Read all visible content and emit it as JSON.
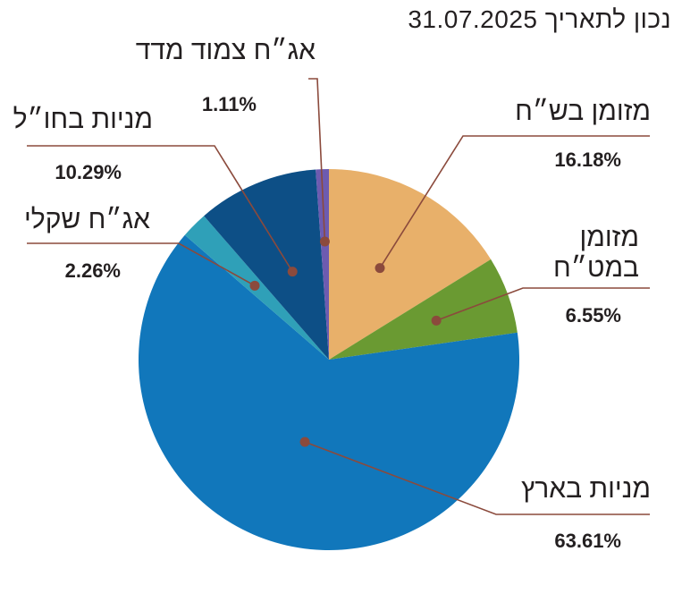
{
  "header": {
    "title": "נכון לתאריך 31.07.2025"
  },
  "chart_data": {
    "type": "pie",
    "title": "נכון לתאריך 31.07.2025",
    "slices": [
      {
        "label": "מזומן בש״ח",
        "value": 16.18,
        "value_label": "16.18%",
        "color": "#e8b06a"
      },
      {
        "label": "מזומן\nבמט״ח",
        "value": 6.55,
        "value_label": "6.55%",
        "color": "#6a9a32"
      },
      {
        "label": "מניות בארץ",
        "value": 63.61,
        "value_label": "63.61%",
        "color": "#1177bb"
      },
      {
        "label": "אג״ח שקלי",
        "value": 2.26,
        "value_label": "2.26%",
        "color": "#2fa0b8"
      },
      {
        "label": "מניות בחו״ל",
        "value": 10.29,
        "value_label": "10.29%",
        "color": "#0d4f86"
      },
      {
        "label": "אג״ח צמוד מדד",
        "value": 1.11,
        "value_label": "1.11%",
        "color": "#6d5bb0"
      }
    ],
    "leader_color": "#8b4a3c"
  }
}
